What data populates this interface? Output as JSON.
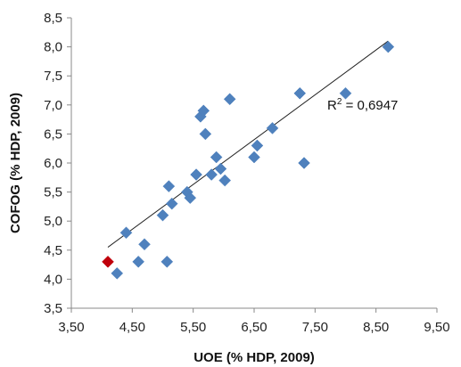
{
  "chart_data": {
    "type": "scatter",
    "xlabel": "UOE (% HDP, 2009)",
    "ylabel": "COFOG (% HDP, 2009)",
    "xlim": [
      3.5,
      9.5
    ],
    "ylim": [
      3.5,
      8.5
    ],
    "x_ticks": [
      "3,50",
      "4,50",
      "5,50",
      "6,50",
      "7,50",
      "8,50",
      "9,50"
    ],
    "y_ticks": [
      "3,5",
      "4,0",
      "4,5",
      "5,0",
      "5,5",
      "6,0",
      "6,5",
      "7,0",
      "7,5",
      "8,0",
      "8,5"
    ],
    "grid": false,
    "series": [
      {
        "color": "#4f81bd",
        "points": [
          {
            "x": 4.25,
            "y": 4.1
          },
          {
            "x": 4.4,
            "y": 4.8
          },
          {
            "x": 4.6,
            "y": 4.3
          },
          {
            "x": 4.7,
            "y": 4.6
          },
          {
            "x": 5.0,
            "y": 5.1
          },
          {
            "x": 5.07,
            "y": 4.3
          },
          {
            "x": 5.1,
            "y": 5.6
          },
          {
            "x": 5.15,
            "y": 5.3
          },
          {
            "x": 5.4,
            "y": 5.5
          },
          {
            "x": 5.45,
            "y": 5.4
          },
          {
            "x": 5.55,
            "y": 5.8
          },
          {
            "x": 5.62,
            "y": 6.8
          },
          {
            "x": 5.67,
            "y": 6.9
          },
          {
            "x": 5.7,
            "y": 6.5
          },
          {
            "x": 5.8,
            "y": 5.8
          },
          {
            "x": 5.88,
            "y": 6.1
          },
          {
            "x": 5.95,
            "y": 5.9
          },
          {
            "x": 6.02,
            "y": 5.7
          },
          {
            "x": 6.1,
            "y": 7.1
          },
          {
            "x": 6.5,
            "y": 6.1
          },
          {
            "x": 6.55,
            "y": 6.3
          },
          {
            "x": 6.8,
            "y": 6.6
          },
          {
            "x": 7.25,
            "y": 7.2
          },
          {
            "x": 7.32,
            "y": 6.0
          },
          {
            "x": 8.0,
            "y": 7.2
          },
          {
            "x": 8.7,
            "y": 8.0
          }
        ]
      },
      {
        "color": "#c0000b",
        "points": [
          {
            "x": 4.1,
            "y": 4.3
          }
        ]
      }
    ],
    "trendline": {
      "x_start": 4.1,
      "y_start": 4.55,
      "x_end": 8.7,
      "y_end": 8.1,
      "color": "#222222"
    },
    "annotation": {
      "r2_prefix": "R",
      "r2_sup": "2",
      "r2_value": " = 0,6947",
      "x": 7.7,
      "y": 7.0
    }
  }
}
